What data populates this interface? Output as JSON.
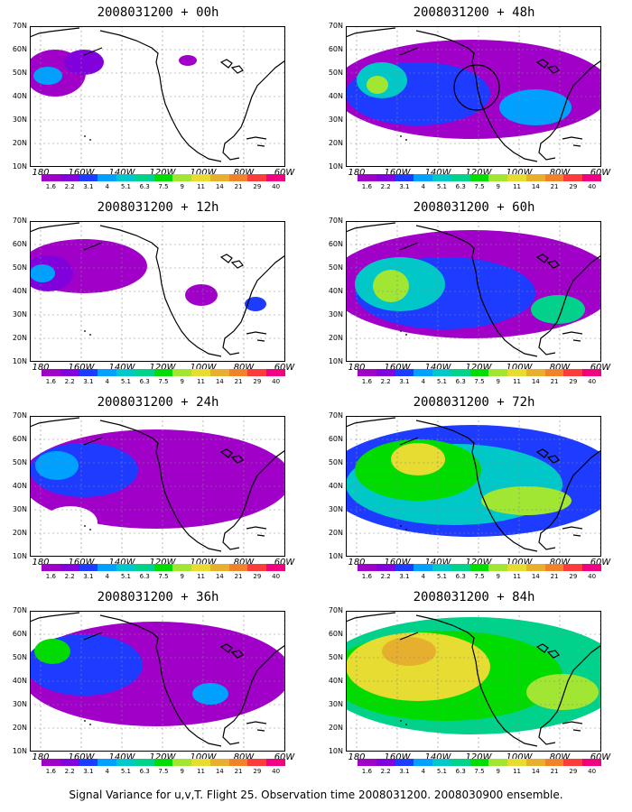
{
  "panels": [
    {
      "title": "2008031200 + 00h",
      "level": 1
    },
    {
      "title": "2008031200 + 48h",
      "level": 4,
      "circle": true
    },
    {
      "title": "2008031200 + 12h",
      "level": 2
    },
    {
      "title": "2008031200 + 60h",
      "level": 5
    },
    {
      "title": "2008031200 + 24h",
      "level": 3
    },
    {
      "title": "2008031200 + 72h",
      "level": 6
    },
    {
      "title": "2008031200 + 36h",
      "level": 3
    },
    {
      "title": "2008031200 + 84h",
      "level": 7
    }
  ],
  "lat_labels": [
    "70N",
    "60N",
    "50N",
    "40N",
    "30N",
    "20N",
    "10N"
  ],
  "lon_labels": [
    "180",
    "160W",
    "140W",
    "120W",
    "100W",
    "80W",
    "60W"
  ],
  "colorbar": {
    "colors": [
      "#a000c8",
      "#8200dc",
      "#1e3cff",
      "#00a0ff",
      "#00c8c8",
      "#00d28c",
      "#00dc00",
      "#a0e632",
      "#e6dc32",
      "#e6af2d",
      "#f08228",
      "#fa3c3c",
      "#f00082"
    ],
    "labels": [
      "1.6",
      "2.2",
      "3.1",
      "4",
      "5.1",
      "6.3",
      "7.5",
      "9",
      "11",
      "14",
      "21",
      "29",
      "40"
    ]
  },
  "caption": "Signal Variance for u,v,T. Flight 25. Observation time 2008031200. 2008030900 ensemble."
}
